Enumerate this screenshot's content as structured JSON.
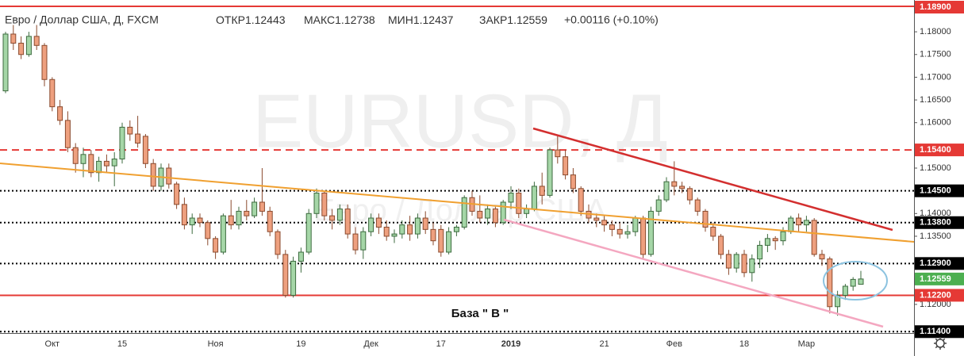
{
  "header": {
    "symbol": "Евро / Доллар США, Д, FXCM",
    "open": {
      "label": "ОТКР",
      "value": 1.12443
    },
    "high": {
      "label": "МАКС",
      "value": 1.12738
    },
    "low": {
      "label": "МИН",
      "value": 1.12437
    },
    "close": {
      "label": "ЗАКР",
      "value": 1.12559
    },
    "change": "+0.00116 (+0.10%)"
  },
  "chart_data": {
    "type": "candlestick",
    "watermark": {
      "symbol": "EURUSD, Д",
      "description": "Евро / Доллар США"
    },
    "annotation": "База  \" В \"",
    "up_color": "#a5d6a7",
    "down_color": "#eea07f",
    "categories": [
      null,
      null,
      null,
      null,
      null,
      null,
      "Окт",
      null,
      null,
      null,
      null,
      null,
      null,
      null,
      null,
      "15",
      null,
      null,
      null,
      null,
      null,
      null,
      null,
      null,
      null,
      null,
      null,
      "Ноя",
      null,
      null,
      null,
      null,
      null,
      null,
      null,
      null,
      null,
      null,
      "19",
      null,
      null,
      null,
      null,
      null,
      null,
      null,
      null,
      "Дек",
      null,
      null,
      null,
      null,
      null,
      null,
      null,
      null,
      "17",
      null,
      null,
      null,
      null,
      null,
      null,
      null,
      null,
      "2019",
      null,
      null,
      null,
      null,
      null,
      null,
      null,
      null,
      null,
      null,
      null,
      "21",
      null,
      null,
      null,
      null,
      null,
      null,
      null,
      null,
      "Фев",
      null,
      null,
      null,
      null,
      null,
      null,
      null,
      null,
      "18",
      null,
      null,
      null,
      null,
      null,
      null,
      null,
      "Мар",
      null,
      null,
      null,
      null,
      null,
      null,
      null
    ],
    "open": [
      1.167,
      1.1795,
      1.1775,
      1.175,
      1.179,
      1.177,
      1.1695,
      1.1635,
      1.1605,
      1.1545,
      1.151,
      1.153,
      1.149,
      1.1515,
      1.1505,
      1.152,
      1.159,
      1.1575,
      1.157,
      1.151,
      1.146,
      1.15,
      1.1465,
      1.142,
      1.1375,
      1.139,
      1.138,
      1.1345,
      1.1315,
      1.1395,
      1.1375,
      1.1405,
      1.1395,
      1.1425,
      1.1405,
      1.136,
      1.131,
      1.122,
      1.1295,
      1.1315,
      1.14,
      1.1445,
      1.1395,
      1.1385,
      1.141,
      1.1355,
      1.132,
      1.136,
      1.139,
      1.137,
      1.135,
      1.1355,
      1.1375,
      1.1355,
      1.139,
      1.1365,
      1.1365,
      1.1315,
      1.136,
      1.137,
      1.1435,
      1.1405,
      1.139,
      1.141,
      1.138,
      1.1425,
      1.1445,
      1.14,
      1.141,
      1.146,
      1.144,
      1.154,
      1.1525,
      1.1485,
      1.1455,
      1.1405,
      1.139,
      1.1385,
      1.1375,
      1.1365,
      1.1355,
      1.136,
      1.139,
      1.131,
      1.1405,
      1.143,
      1.147,
      1.146,
      1.1455,
      1.143,
      1.1405,
      1.137,
      1.135,
      1.131,
      1.128,
      1.131,
      1.127,
      1.13,
      1.133,
      1.1345,
      1.134,
      1.136,
      1.139,
      1.1375,
      1.1385,
      1.131,
      1.13,
      1.1195,
      1.122,
      1.124,
      1.12443
    ],
    "high": [
      1.18,
      1.1815,
      1.179,
      1.18,
      1.1815,
      1.1775,
      1.17,
      1.165,
      1.1625,
      1.1555,
      1.1545,
      1.154,
      1.1525,
      1.153,
      1.1535,
      1.16,
      1.1605,
      1.1615,
      1.1575,
      1.152,
      1.151,
      1.151,
      1.147,
      1.1435,
      1.14,
      1.14,
      1.1385,
      1.135,
      1.14,
      1.143,
      1.1415,
      1.143,
      1.1435,
      1.15,
      1.1415,
      1.1365,
      1.132,
      1.1305,
      1.1325,
      1.141,
      1.1455,
      1.145,
      1.141,
      1.142,
      1.142,
      1.137,
      1.137,
      1.14,
      1.14,
      1.1385,
      1.1365,
      1.1385,
      1.1395,
      1.14,
      1.1405,
      1.138,
      1.1375,
      1.137,
      1.1375,
      1.144,
      1.145,
      1.144,
      1.142,
      1.1415,
      1.143,
      1.146,
      1.1455,
      1.142,
      1.147,
      1.149,
      1.1545,
      1.157,
      1.154,
      1.15,
      1.146,
      1.142,
      1.14,
      1.1395,
      1.1385,
      1.138,
      1.1375,
      1.1395,
      1.1395,
      1.1415,
      1.144,
      1.148,
      1.1515,
      1.147,
      1.146,
      1.1435,
      1.141,
      1.138,
      1.1355,
      1.132,
      1.1315,
      1.132,
      1.131,
      1.134,
      1.1355,
      1.135,
      1.137,
      1.1395,
      1.14,
      1.1395,
      1.139,
      1.132,
      1.1305,
      1.123,
      1.1245,
      1.126,
      1.12738
    ],
    "low": [
      1.1665,
      1.176,
      1.174,
      1.1745,
      1.176,
      1.168,
      1.1625,
      1.1595,
      1.1535,
      1.149,
      1.148,
      1.148,
      1.147,
      1.149,
      1.146,
      1.151,
      1.156,
      1.1545,
      1.15,
      1.145,
      1.145,
      1.1455,
      1.141,
      1.1365,
      1.1355,
      1.137,
      1.133,
      1.13,
      1.131,
      1.1365,
      1.1365,
      1.1385,
      1.139,
      1.1395,
      1.135,
      1.13,
      1.1215,
      1.1215,
      1.127,
      1.131,
      1.139,
      1.1385,
      1.1365,
      1.1375,
      1.1345,
      1.131,
      1.13,
      1.135,
      1.1355,
      1.134,
      1.1335,
      1.1345,
      1.134,
      1.1345,
      1.1355,
      1.133,
      1.1305,
      1.131,
      1.135,
      1.1365,
      1.1395,
      1.138,
      1.1375,
      1.137,
      1.1375,
      1.141,
      1.139,
      1.139,
      1.1405,
      1.142,
      1.1435,
      1.151,
      1.1475,
      1.1445,
      1.1395,
      1.138,
      1.137,
      1.136,
      1.135,
      1.1345,
      1.1345,
      1.135,
      1.13,
      1.1305,
      1.1395,
      1.1425,
      1.144,
      1.1445,
      1.142,
      1.1395,
      1.136,
      1.134,
      1.13,
      1.1265,
      1.127,
      1.126,
      1.125,
      1.128,
      1.1315,
      1.132,
      1.133,
      1.1355,
      1.136,
      1.136,
      1.1305,
      1.1285,
      1.118,
      1.1175,
      1.121,
      1.123,
      1.12437
    ],
    "close": [
      1.1795,
      1.1775,
      1.175,
      1.179,
      1.177,
      1.1695,
      1.1635,
      1.1605,
      1.1545,
      1.151,
      1.153,
      1.149,
      1.1515,
      1.1505,
      1.152,
      1.159,
      1.1575,
      1.1555,
      1.151,
      1.146,
      1.15,
      1.1465,
      1.142,
      1.1375,
      1.139,
      1.138,
      1.1345,
      1.1315,
      1.1395,
      1.1375,
      1.1405,
      1.1395,
      1.1425,
      1.1405,
      1.136,
      1.131,
      1.122,
      1.1295,
      1.1315,
      1.14,
      1.1445,
      1.1395,
      1.1385,
      1.141,
      1.1355,
      1.132,
      1.136,
      1.139,
      1.137,
      1.135,
      1.1355,
      1.1375,
      1.1355,
      1.139,
      1.1365,
      1.134,
      1.1315,
      1.136,
      1.137,
      1.1435,
      1.1405,
      1.139,
      1.141,
      1.138,
      1.1425,
      1.1445,
      1.14,
      1.141,
      1.146,
      1.144,
      1.154,
      1.1525,
      1.1485,
      1.1455,
      1.1405,
      1.139,
      1.1385,
      1.1375,
      1.1365,
      1.1355,
      1.136,
      1.139,
      1.131,
      1.1405,
      1.143,
      1.147,
      1.146,
      1.1455,
      1.143,
      1.1405,
      1.137,
      1.135,
      1.131,
      1.128,
      1.131,
      1.127,
      1.13,
      1.133,
      1.1345,
      1.134,
      1.136,
      1.139,
      1.1375,
      1.1385,
      1.131,
      1.13,
      1.1195,
      1.122,
      1.124,
      1.1255,
      1.12559
    ],
    "ylim": [
      1.1137,
      1.187
    ],
    "yticks": [
      {
        "value": 1.18,
        "label": "1.18000"
      },
      {
        "value": 1.175,
        "label": "1.17500"
      },
      {
        "value": 1.17,
        "label": "1.17000"
      },
      {
        "value": 1.165,
        "label": "1.16500"
      },
      {
        "value": 1.16,
        "label": "1.16000"
      },
      {
        "value": 1.15,
        "label": "1.15000"
      },
      {
        "value": 1.14,
        "label": "1.14000"
      },
      {
        "value": 1.135,
        "label": "1.13500"
      },
      {
        "value": 1.12,
        "label": "1.12000"
      }
    ],
    "levels": [
      {
        "value": 1.189,
        "label": "1.18900",
        "color": "#e53935",
        "style": "solid"
      },
      {
        "value": 1.154,
        "label": "1.15400",
        "color": "#e53935",
        "style": "dashed"
      },
      {
        "value": 1.145,
        "label": "1.14500",
        "color": "#000000",
        "style": "dotted"
      },
      {
        "value": 1.138,
        "label": "1.13800",
        "color": "#000000",
        "style": "dotted"
      },
      {
        "value": 1.129,
        "label": "1.12900",
        "color": "#000000",
        "style": "dotted"
      },
      {
        "value": 1.12559,
        "label": "1.12559",
        "color": "#4caf50",
        "style": "none"
      },
      {
        "value": 1.122,
        "label": "1.12200",
        "color": "#e53935",
        "style": "solid"
      },
      {
        "value": 1.114,
        "label": "1.11400",
        "color": "#000000",
        "style": "dotted"
      }
    ]
  }
}
